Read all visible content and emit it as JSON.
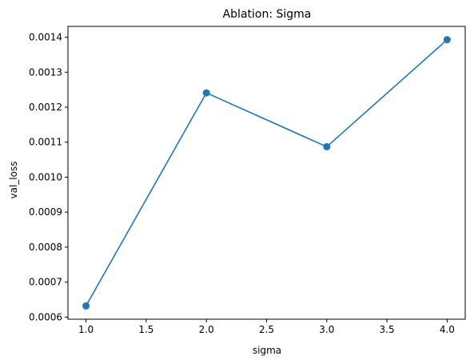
{
  "chart_data": {
    "type": "line",
    "title": "Ablation: Sigma",
    "xlabel": "sigma",
    "ylabel": "val_loss",
    "x": [
      1.0,
      2.0,
      3.0,
      4.0
    ],
    "series": [
      {
        "values": [
          0.000632,
          0.001241,
          0.001087,
          0.001393
        ],
        "color": "#1f77b4",
        "marker": "circle"
      }
    ],
    "xlim": [
      0.85,
      4.15
    ],
    "ylim": [
      0.000594,
      0.001431
    ],
    "xticks": [
      1.0,
      1.5,
      2.0,
      2.5,
      3.0,
      3.5,
      4.0
    ],
    "xtick_labels": [
      "1.0",
      "1.5",
      "2.0",
      "2.5",
      "3.0",
      "3.5",
      "4.0"
    ],
    "yticks": [
      0.0006,
      0.0007,
      0.0008,
      0.0009,
      0.001,
      0.0011,
      0.0012,
      0.0013,
      0.0014
    ],
    "ytick_labels": [
      "0.0006",
      "0.0007",
      "0.0008",
      "0.0009",
      "0.0010",
      "0.0011",
      "0.0012",
      "0.0013",
      "0.0014"
    ],
    "grid": false,
    "legend": false
  }
}
